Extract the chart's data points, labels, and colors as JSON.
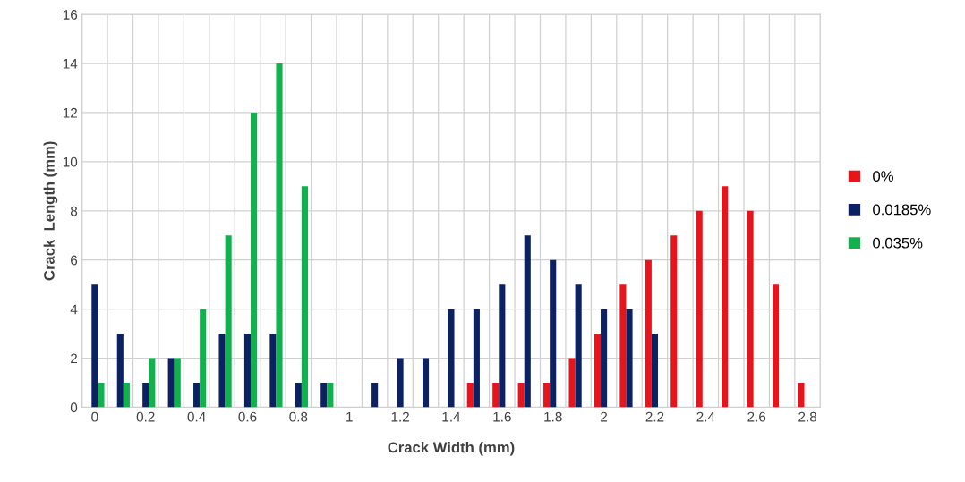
{
  "chart_data": {
    "type": "bar",
    "xlabel": "Crack Width (mm)",
    "ylabel": "Crack  Length (mm)",
    "categories": [
      "0",
      null,
      "0.2",
      null,
      "0.4",
      null,
      "0.6",
      null,
      "0.8",
      null,
      "1",
      null,
      "1.2",
      null,
      "1.4",
      null,
      "1.6",
      null,
      "1.8",
      null,
      "2",
      null,
      "2.2",
      null,
      "2.4",
      null,
      "2.6",
      null,
      "2.8"
    ],
    "series": [
      {
        "name": "0%",
        "color": "#e8141c",
        "values": [
          0,
          0,
          0,
          0,
          0,
          0,
          0,
          0,
          0,
          0,
          0,
          0,
          0,
          0,
          0,
          1,
          1,
          1,
          1,
          2,
          3,
          5,
          6,
          7,
          8,
          9,
          8,
          5,
          1
        ]
      },
      {
        "name": "0.0185%",
        "color": "#0b2161",
        "values": [
          5,
          3,
          1,
          2,
          1,
          3,
          3,
          3,
          1,
          1,
          0,
          1,
          2,
          2,
          4,
          4,
          5,
          7,
          6,
          5,
          4,
          4,
          3,
          0,
          0,
          0,
          0,
          0,
          0
        ]
      },
      {
        "name": "0.035%",
        "color": "#12b04f",
        "values": [
          1,
          1,
          2,
          2,
          4,
          7,
          12,
          14,
          9,
          1,
          0,
          0,
          0,
          0,
          0,
          0,
          0,
          0,
          0,
          0,
          0,
          0,
          0,
          0,
          0,
          0,
          0,
          0,
          0
        ]
      }
    ],
    "ylim": [
      0,
      16
    ],
    "yticks": [
      0,
      2,
      4,
      6,
      8,
      10,
      12,
      14,
      16
    ],
    "grid": true,
    "legend": "right"
  }
}
